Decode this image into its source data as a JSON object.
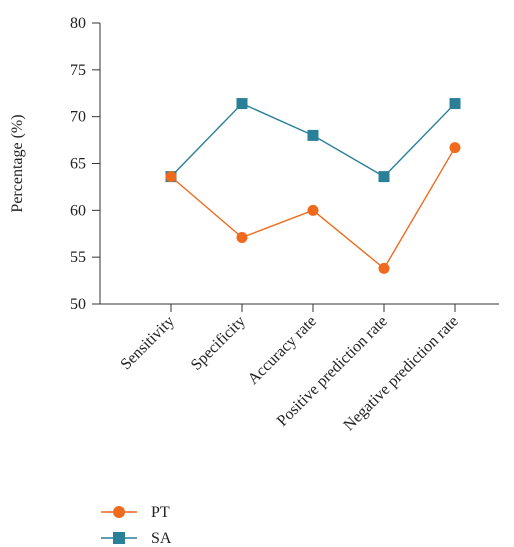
{
  "chart_data": {
    "type": "line",
    "categories": [
      "Sensitivity",
      "Specificity",
      "Accuracy rate",
      "Positive prediction rate",
      "Negative prediction rate"
    ],
    "series": [
      {
        "name": "PT",
        "marker": "circle",
        "color": "#ef6a1c",
        "values": [
          63.6,
          57.1,
          60.0,
          53.8,
          66.7
        ]
      },
      {
        "name": "SA",
        "marker": "square",
        "color": "#2a7f99",
        "values": [
          63.6,
          71.4,
          68.0,
          63.6,
          71.4
        ]
      }
    ],
    "ylabel": "Percentage (%)",
    "xlabel": "",
    "ylim": [
      50,
      80
    ],
    "yticks": [
      50,
      55,
      60,
      65,
      70,
      75,
      80
    ],
    "grid": false,
    "legend_position": "bottom-left"
  }
}
